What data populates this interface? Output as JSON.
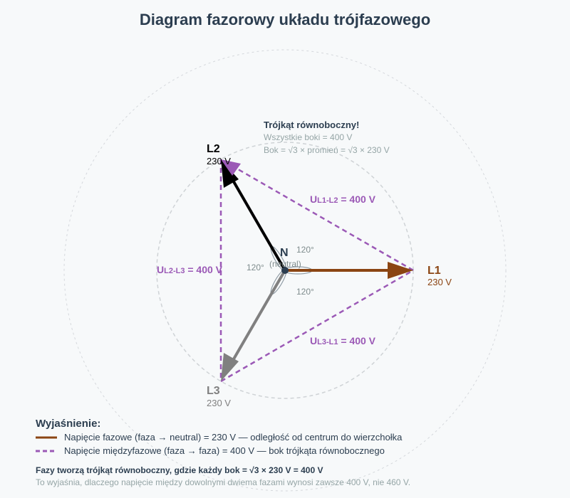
{
  "title": "Diagram fazorowy układu trójfazowego",
  "colors": {
    "L1": "#8b4513",
    "L2": "#000000",
    "L3": "#808080",
    "line_voltage": "#9b59b6",
    "neutral": "#2c3e50",
    "circle": "#d5d8dc"
  },
  "phases": {
    "L1": {
      "name": "L1",
      "voltage": "230 V",
      "angle_deg": 0
    },
    "L2": {
      "name": "L2",
      "voltage": "230 V",
      "angle_deg": 120
    },
    "L3": {
      "name": "L3",
      "voltage": "230 V",
      "angle_deg": 240
    }
  },
  "neutral": {
    "name": "N",
    "sub": "(neutral)"
  },
  "angles": [
    "120°",
    "120°",
    "120°"
  ],
  "line_voltages": {
    "L1_L2": {
      "prefix": "U",
      "sub": "L1-L2",
      "value": " = 400 V"
    },
    "L2_L3": {
      "prefix": "U",
      "sub": "L2-L3",
      "value": " = 400 V"
    },
    "L3_L1": {
      "prefix": "U",
      "sub": "L3-L1",
      "value": " = 400 V"
    }
  },
  "triangle_note": {
    "heading": "Trójkąt równoboczny!",
    "line1": "Wszystkie boki = 400 V",
    "line2": "Bok = √3 × promień = √3 × 230 V"
  },
  "legend": {
    "title": "Wyjaśnienie:",
    "phase_voltage": "Napięcie fazowe (faza → neutral) = 230 V — odległość od centrum do wierzchołka",
    "line_voltage": "Napięcie międzyfazowe (faza → faza) = 400 V — bok trójkąta równobocznego"
  },
  "footer": {
    "bold": "Fazy tworzą trójkąt równoboczny, gdzie każdy bok = √3 × 230 V = 400 V",
    "note": "To wyjaśnia, dlaczego napięcie między dowolnymi dwiema fazami wynosi zawsze 400 V, nie 460 V."
  }
}
